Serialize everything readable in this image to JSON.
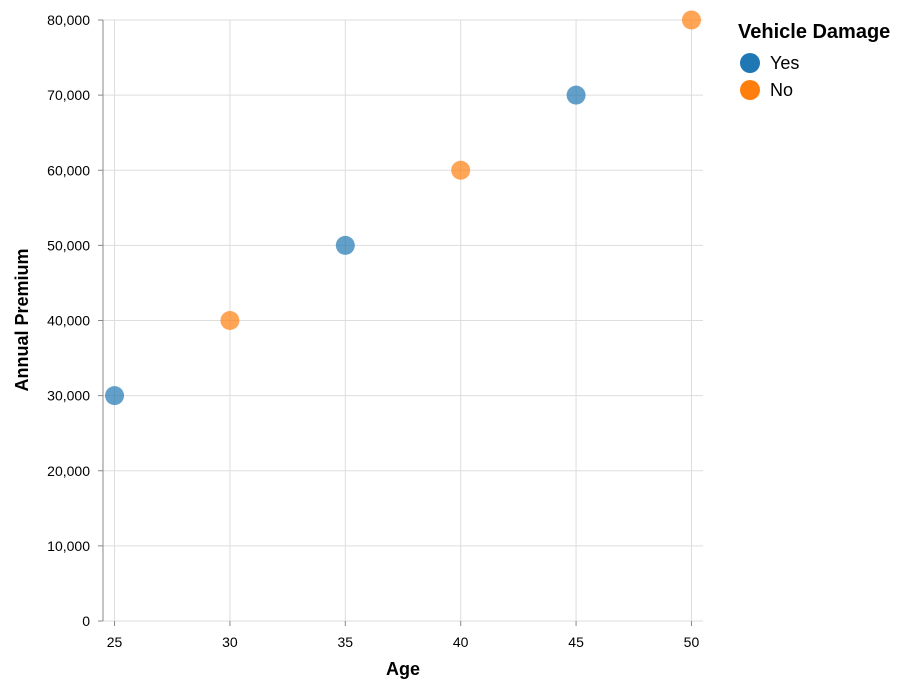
{
  "chart_data": {
    "type": "scatter",
    "xlabel": "Age",
    "ylabel": "Annual Premium",
    "xlim": [
      24.5,
      50.5
    ],
    "ylim": [
      0,
      80000
    ],
    "x_ticks": [
      25,
      30,
      35,
      40,
      45,
      50
    ],
    "y_ticks": [
      0,
      10000,
      20000,
      30000,
      40000,
      50000,
      60000,
      70000,
      80000
    ],
    "x_tick_labels": [
      "25",
      "30",
      "35",
      "40",
      "45",
      "50"
    ],
    "y_tick_labels": [
      "0",
      "10,000",
      "20,000",
      "30,000",
      "40,000",
      "50,000",
      "60,000",
      "70,000",
      "80,000"
    ],
    "grid": true,
    "legend": {
      "title": "Vehicle Damage",
      "placement": "right",
      "entries": [
        {
          "label": "Yes",
          "color": "#1f77b4"
        },
        {
          "label": "No",
          "color": "#ff7f0e"
        }
      ]
    },
    "points": [
      {
        "x": 25,
        "y": 30000,
        "group": "Yes"
      },
      {
        "x": 30,
        "y": 40000,
        "group": "No"
      },
      {
        "x": 35,
        "y": 50000,
        "group": "Yes"
      },
      {
        "x": 40,
        "y": 60000,
        "group": "No"
      },
      {
        "x": 45,
        "y": 70000,
        "group": "Yes"
      },
      {
        "x": 50,
        "y": 80000,
        "group": "No"
      }
    ],
    "colors": {
      "Yes": "#1f77b4",
      "No": "#ff7f0e",
      "grid": "#dddddd",
      "axis": "#888888"
    }
  }
}
